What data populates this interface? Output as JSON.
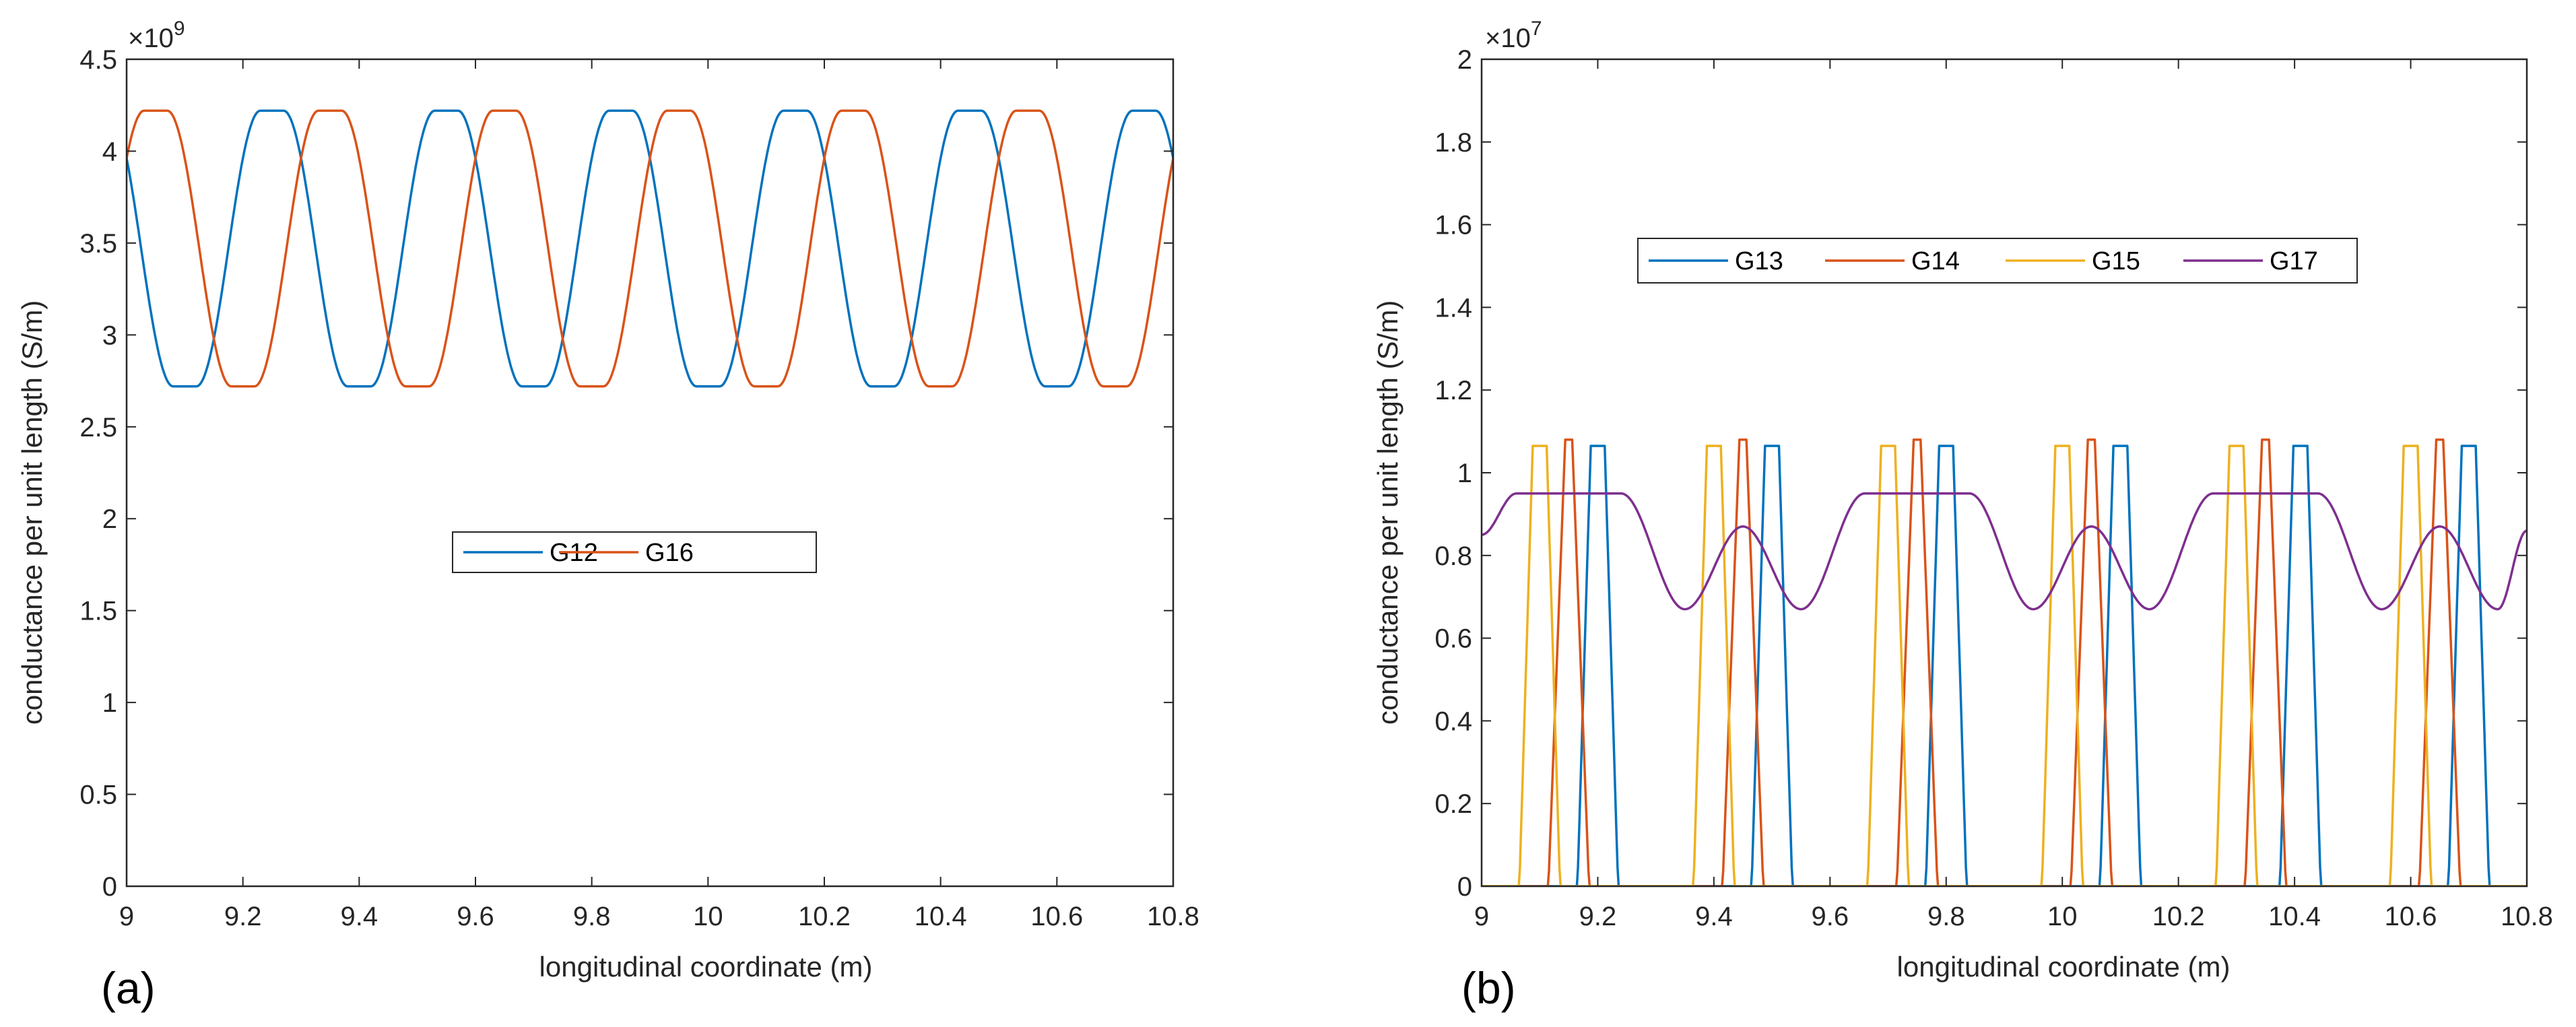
{
  "chart_data": [
    {
      "type": "line",
      "panel_label": "(a)",
      "xlabel": "longitudinal coordinate (m)",
      "ylabel": "conductance per unit length (S/m)",
      "exponent_label": "×10",
      "exponent_power": "9",
      "xlim": [
        9,
        10.8
      ],
      "ylim": [
        0,
        4.5
      ],
      "xticks": [
        9,
        9.2,
        9.4,
        9.6,
        9.8,
        10,
        10.2,
        10.4,
        10.6,
        10.8
      ],
      "xtick_labels": [
        "9",
        "9.2",
        "9.4",
        "9.6",
        "9.8",
        "10",
        "10.2",
        "10.4",
        "10.6",
        "10.8"
      ],
      "yticks": [
        0,
        0.5,
        1,
        1.5,
        2,
        2.5,
        3,
        3.5,
        4,
        4.5
      ],
      "ytick_labels": [
        "0",
        "0.5",
        "1",
        "1.5",
        "2",
        "2.5",
        "3",
        "3.5",
        "4",
        "4.5"
      ],
      "legend_position": "center",
      "series": [
        {
          "name": "G12",
          "color": "#0072BD",
          "shape": "plateau",
          "base": 2.72,
          "peak": 4.22,
          "period": 0.3,
          "peak_center": 9.25,
          "flat_half": 0.02,
          "rise": 0.06
        },
        {
          "name": "G16",
          "color": "#D95319",
          "shape": "plateau",
          "base": 2.72,
          "peak": 4.22,
          "period": 0.3,
          "peak_center": 9.05,
          "flat_half": 0.02,
          "rise": 0.06
        }
      ]
    },
    {
      "type": "line",
      "panel_label": "(b)",
      "xlabel": "longitudinal coordinate (m)",
      "ylabel": "conductance per unit length (S/m)",
      "exponent_label": "×10",
      "exponent_power": "7",
      "xlim": [
        9,
        10.8
      ],
      "ylim": [
        0,
        2
      ],
      "xticks": [
        9,
        9.2,
        9.4,
        9.6,
        9.8,
        10,
        10.2,
        10.4,
        10.6,
        10.8
      ],
      "xtick_labels": [
        "9",
        "9.2",
        "9.4",
        "9.6",
        "9.8",
        "10",
        "10.2",
        "10.4",
        "10.6",
        "10.8"
      ],
      "yticks": [
        0,
        0.2,
        0.4,
        0.6,
        0.8,
        1,
        1.2,
        1.4,
        1.6,
        1.8,
        2
      ],
      "ytick_labels": [
        "0",
        "0.2",
        "0.4",
        "0.6",
        "0.8",
        "1",
        "1.2",
        "1.4",
        "1.6",
        "1.8",
        "2"
      ],
      "legend_position": "upper-center",
      "series": [
        {
          "name": "G13",
          "color": "#0072BD",
          "shape": "pulse",
          "peak": 1.065,
          "period": 0.3,
          "centers": [
            9.2,
            9.5,
            9.8,
            10.1,
            10.41,
            10.7
          ],
          "half_base": 0.035,
          "half_top": 0.012
        },
        {
          "name": "G14",
          "color": "#D95319",
          "shape": "pulse",
          "peak": 1.08,
          "period": 0.3,
          "centers": [
            9.15,
            9.45,
            9.75,
            10.05,
            10.35,
            10.65
          ],
          "half_base": 0.035,
          "half_top": 0.006
        },
        {
          "name": "G15",
          "color": "#EDB120",
          "shape": "pulse",
          "peak": 1.065,
          "period": 0.3,
          "centers": [
            9.1,
            9.4,
            9.7,
            10.0,
            10.3,
            10.6
          ],
          "half_base": 0.035,
          "half_top": 0.012
        },
        {
          "name": "G17",
          "color": "#7E2F8E",
          "shape": "wave",
          "plateau": 0.95,
          "bump_peak": 0.87,
          "min": 0.67,
          "plateau_centers": [
            9.15,
            9.75,
            10.35
          ],
          "bump_centers": [
            9.45,
            10.05,
            10.65
          ],
          "dip_positions": [
            9.35,
            9.55,
            9.95,
            10.15,
            10.55,
            10.75
          ],
          "start": 0.85,
          "end": 0.86
        }
      ]
    }
  ]
}
